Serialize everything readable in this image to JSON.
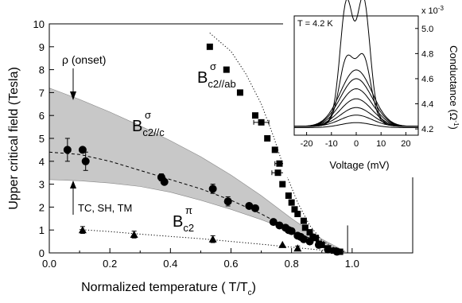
{
  "chart_data": [
    {
      "type": "scatter",
      "xlabel_main": "Normalized temperature ( T/T",
      "xlabel_sub": "c",
      "xlabel_close": ")",
      "ylabel": "Upper critical field (Tesla)",
      "xlim": [
        0.0,
        1.0
      ],
      "ylim": [
        0,
        10
      ],
      "xticks": [
        "0.0",
        "0.2",
        "0.4",
        "0.6",
        "0.8",
        "1.0"
      ],
      "yticks": [
        "0",
        "1",
        "2",
        "3",
        "4",
        "5",
        "6",
        "7",
        "8",
        "9",
        "10"
      ],
      "annotations": {
        "rho_onset": "ρ (onset)",
        "tc_sh_tm": "TC, SH, TM",
        "bab_main": "B",
        "bab_sub": "c2//ab",
        "bab_sup": "σ",
        "bc_main": "B",
        "bc_sub": "c2//c",
        "bc_sup": "σ",
        "bpi_main": "B",
        "bpi_sub": "c2",
        "bpi_sup": "π"
      },
      "band": {
        "upper": [
          [
            0.0,
            7.2
          ],
          [
            0.1,
            6.7
          ],
          [
            0.2,
            6.15
          ],
          [
            0.3,
            5.55
          ],
          [
            0.4,
            4.9
          ],
          [
            0.5,
            4.2
          ],
          [
            0.6,
            3.4
          ],
          [
            0.7,
            2.5
          ],
          [
            0.8,
            1.5
          ],
          [
            0.9,
            0.6
          ],
          [
            0.98,
            0.05
          ]
        ],
        "lower": [
          [
            0.98,
            0.05
          ],
          [
            0.9,
            0.45
          ],
          [
            0.8,
            0.95
          ],
          [
            0.7,
            1.45
          ],
          [
            0.6,
            1.9
          ],
          [
            0.5,
            2.3
          ],
          [
            0.4,
            2.65
          ],
          [
            0.3,
            2.9
          ],
          [
            0.2,
            3.05
          ],
          [
            0.1,
            3.15
          ],
          [
            0.0,
            3.2
          ]
        ]
      },
      "series": [
        {
          "marker": "square",
          "points": [
            [
              0.53,
              9.0
            ],
            [
              0.585,
              8.0
            ],
            [
              0.63,
              7.0
            ],
            [
              0.68,
              6.0
            ],
            [
              0.7,
              5.7
            ],
            [
              0.72,
              5.0
            ],
            [
              0.745,
              4.5
            ],
            [
              0.76,
              3.9
            ],
            [
              0.755,
              3.5
            ],
            [
              0.77,
              3.0
            ],
            [
              0.79,
              2.5
            ],
            [
              0.8,
              2.2
            ],
            [
              0.81,
              1.9
            ],
            [
              0.82,
              1.7
            ],
            [
              0.84,
              1.4
            ],
            [
              0.845,
              1.1
            ],
            [
              0.86,
              0.9
            ],
            [
              0.87,
              0.7
            ],
            [
              0.88,
              0.65
            ],
            [
              0.89,
              0.4
            ],
            [
              0.9,
              0.35
            ],
            [
              0.92,
              0.2
            ],
            [
              0.94,
              0.1
            ],
            [
              0.96,
              0.05
            ]
          ],
          "xerr": [
            0,
            0,
            0,
            0,
            0.025,
            0,
            0,
            0.015,
            0.02,
            0,
            0,
            0,
            0,
            0,
            0,
            0,
            0,
            0,
            0,
            0,
            0,
            0,
            0,
            0
          ]
        },
        {
          "marker": "circle",
          "points": [
            [
              0.06,
              4.5
            ],
            [
              0.11,
              4.5
            ],
            [
              0.12,
              4.0
            ],
            [
              0.37,
              3.3
            ],
            [
              0.38,
              3.1
            ],
            [
              0.54,
              2.8
            ],
            [
              0.59,
              2.25
            ],
            [
              0.66,
              2.05
            ],
            [
              0.68,
              1.95
            ],
            [
              0.74,
              1.35
            ],
            [
              0.76,
              1.2
            ],
            [
              0.78,
              1.1
            ],
            [
              0.79,
              1.0
            ],
            [
              0.8,
              0.95
            ],
            [
              0.82,
              0.75
            ],
            [
              0.83,
              0.7
            ],
            [
              0.84,
              0.6
            ],
            [
              0.86,
              0.5
            ],
            [
              0.89,
              0.35
            ],
            [
              0.92,
              0.15
            ],
            [
              0.95,
              0.05
            ]
          ],
          "yerr": [
            0.5,
            0,
            0.4,
            0.15,
            0,
            0.2,
            0.2,
            0,
            0,
            0,
            0,
            0,
            0,
            0,
            0,
            0,
            0,
            0,
            0,
            0,
            0
          ]
        },
        {
          "marker": "triangle",
          "points": [
            [
              0.11,
              1.0
            ],
            [
              0.28,
              0.8
            ],
            [
              0.54,
              0.6
            ],
            [
              0.77,
              0.35
            ],
            [
              0.82,
              0.2
            ]
          ],
          "yerr": [
            0.15,
            0.15,
            0.15,
            0,
            0.1
          ]
        }
      ],
      "fit_bab": [
        [
          0.53,
          9.6
        ],
        [
          0.6,
          8.8
        ],
        [
          0.65,
          7.8
        ],
        [
          0.7,
          6.5
        ],
        [
          0.74,
          5.1
        ],
        [
          0.78,
          3.5
        ],
        [
          0.82,
          2.2
        ],
        [
          0.86,
          1.2
        ],
        [
          0.9,
          0.55
        ],
        [
          0.95,
          0.15
        ],
        [
          0.98,
          0.02
        ]
      ],
      "fit_bc": [
        [
          0.0,
          4.4
        ],
        [
          0.1,
          4.3
        ],
        [
          0.2,
          4.0
        ],
        [
          0.3,
          3.6
        ],
        [
          0.4,
          3.2
        ],
        [
          0.5,
          2.8
        ],
        [
          0.6,
          2.3
        ],
        [
          0.7,
          1.7
        ],
        [
          0.8,
          1.0
        ],
        [
          0.9,
          0.4
        ],
        [
          0.97,
          0.05
        ]
      ],
      "fit_bpi": [
        [
          0.1,
          1.02
        ],
        [
          0.2,
          0.93
        ],
        [
          0.3,
          0.82
        ],
        [
          0.4,
          0.72
        ],
        [
          0.5,
          0.62
        ],
        [
          0.6,
          0.5
        ],
        [
          0.7,
          0.38
        ],
        [
          0.8,
          0.25
        ],
        [
          0.9,
          0.12
        ],
        [
          0.97,
          0.02
        ]
      ]
    },
    {
      "type": "line",
      "title": "T = 4.2 K",
      "xlabel": "Voltage (mV)",
      "ylabel": "Conductance (Ω",
      "ylabel_sup": "-1",
      "ylabel_close": ")",
      "y_multiplier_main": "x 10",
      "y_multiplier_sup": "-3",
      "xlim": [
        -25,
        25
      ],
      "ylim": [
        4.15,
        5.1
      ],
      "xticks": [
        "-20",
        "-10",
        "0",
        "10",
        "20"
      ],
      "xtick_values": [
        -20,
        -10,
        0,
        10,
        20
      ],
      "yticks": [
        "4.2",
        "4.4",
        "4.6",
        "4.8",
        "5.0"
      ],
      "ytick_values": [
        4.2,
        4.4,
        4.6,
        4.8,
        5.0
      ],
      "curves": [
        {
          "base": 4.22,
          "tails": [
            0.0,
            0.0
          ],
          "peaks": [
            [
              -4,
              0.8,
              3.5
            ],
            [
              3,
              0.8,
              3.5
            ],
            [
              0,
              0.25,
              8
            ]
          ]
        },
        {
          "base": 4.22,
          "tails": [
            0.0,
            0.0
          ],
          "peaks": [
            [
              -4,
              0.42,
              4
            ],
            [
              3,
              0.42,
              4
            ],
            [
              0,
              0.15,
              8
            ]
          ]
        },
        {
          "base": 4.22,
          "tails": [
            0.0,
            0.0
          ],
          "peaks": [
            [
              0,
              0.45,
              9
            ]
          ]
        },
        {
          "base": 4.22,
          "tails": [
            0.0,
            0.0
          ],
          "peaks": [
            [
              0,
              0.38,
              9
            ]
          ]
        },
        {
          "base": 4.22,
          "tails": [
            0.0,
            0.0
          ],
          "peaks": [
            [
              0,
              0.3,
              9
            ]
          ]
        },
        {
          "base": 4.22,
          "tails": [
            0.0,
            0.0
          ],
          "peaks": [
            [
              0,
              0.22,
              9
            ]
          ]
        },
        {
          "base": 4.22,
          "tails": [
            0.0,
            0.0
          ],
          "peaks": [
            [
              0,
              0.15,
              9
            ]
          ]
        },
        {
          "base": 4.22,
          "tails": [
            0.0,
            0.0
          ],
          "peaks": [
            [
              0,
              0.09,
              9
            ]
          ]
        },
        {
          "base": 4.21,
          "tails": [
            0.0,
            0.0
          ],
          "peaks": [
            [
              0,
              0.04,
              9
            ]
          ]
        }
      ]
    }
  ]
}
